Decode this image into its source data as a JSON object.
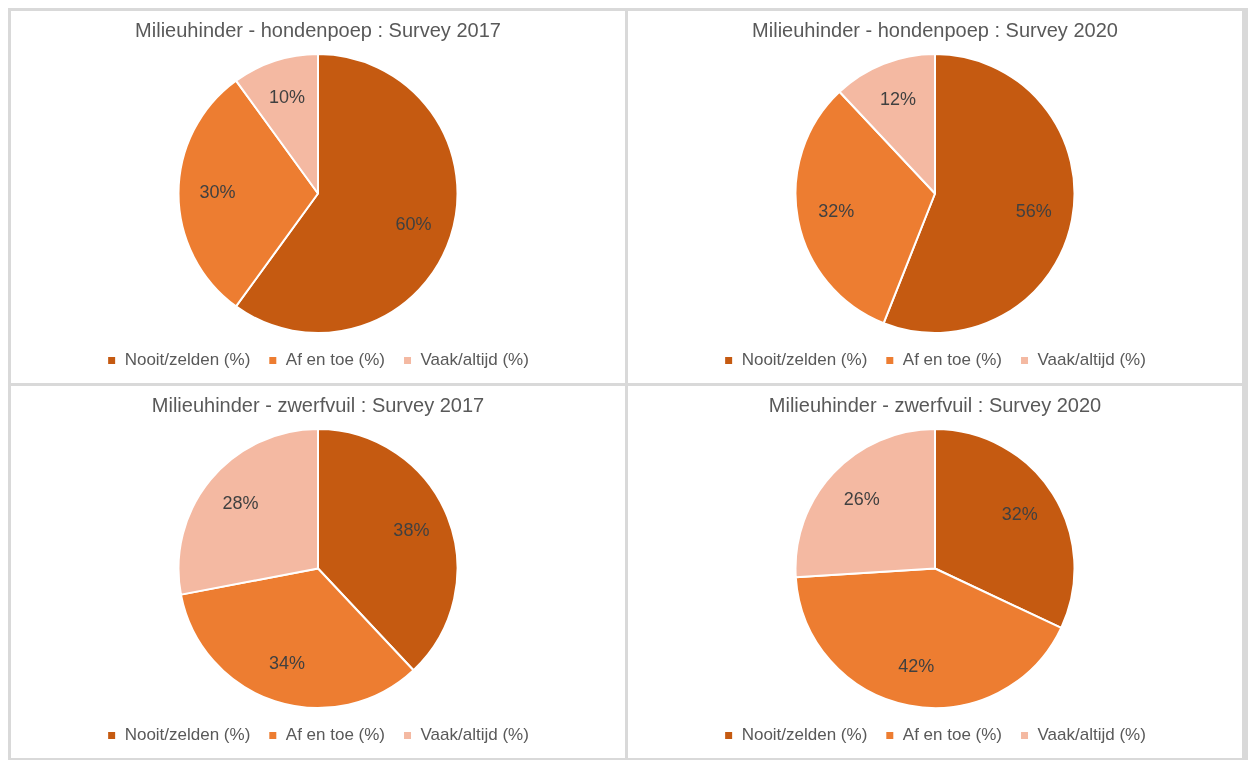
{
  "chart_data": [
    {
      "type": "pie",
      "title": "Milieuhinder - hondenpoep : Survey 2017",
      "categories": [
        "Nooit/zelden (%)",
        "Af en toe (%)",
        "Vaak/altijd (%)"
      ],
      "values": [
        60,
        30,
        10
      ],
      "colors": [
        "#c55a11",
        "#ed7d31",
        "#f4b9a2"
      ],
      "value_labels": [
        "60%",
        "30%",
        "10%"
      ],
      "legend": "bottom"
    },
    {
      "type": "pie",
      "title": "Milieuhinder - hondenpoep : Survey 2020",
      "categories": [
        "Nooit/zelden (%)",
        "Af en toe (%)",
        "Vaak/altijd (%)"
      ],
      "values": [
        56,
        32,
        12
      ],
      "colors": [
        "#c55a11",
        "#ed7d31",
        "#f4b9a2"
      ],
      "value_labels": [
        "56%",
        "32%",
        "12%"
      ],
      "legend": "bottom"
    },
    {
      "type": "pie",
      "title": "Milieuhinder - zwerfvuil : Survey 2017",
      "categories": [
        "Nooit/zelden (%)",
        "Af en toe (%)",
        "Vaak/altijd (%)"
      ],
      "values": [
        38,
        34,
        28
      ],
      "colors": [
        "#c55a11",
        "#ed7d31",
        "#f4b9a2"
      ],
      "value_labels": [
        "38%",
        "34%",
        "28%"
      ],
      "legend": "bottom"
    },
    {
      "type": "pie",
      "title": "Milieuhinder - zwerfvuil : Survey 2020",
      "categories": [
        "Nooit/zelden (%)",
        "Af en toe (%)",
        "Vaak/altijd (%)"
      ],
      "values": [
        32,
        42,
        26
      ],
      "colors": [
        "#c55a11",
        "#ed7d31",
        "#f4b9a2"
      ],
      "value_labels": [
        "32%",
        "42%",
        "26%"
      ],
      "legend": "bottom"
    }
  ]
}
